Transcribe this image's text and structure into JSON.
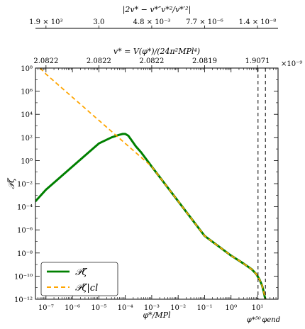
{
  "chart_data": {
    "type": "line",
    "x_scale": "log",
    "y_scale": "log",
    "xlim": [
      4e-08,
      60
    ],
    "ylim": [
      1e-12,
      100000000.0
    ],
    "xlabel": "φ*/MPl",
    "ylabel": "𝒫ζ",
    "x_ticks": [
      "10⁻⁷",
      "10⁻⁶",
      "10⁻⁵",
      "10⁻⁴",
      "10⁻³",
      "10⁻²",
      "10⁻¹",
      "10⁰",
      "10¹"
    ],
    "y_ticks": [
      "10⁻¹²",
      "10⁻¹⁰",
      "10⁻⁸",
      "10⁻⁶",
      "10⁻⁴",
      "10⁻²",
      "10⁰",
      "10²",
      "10⁴",
      "10⁶",
      "10⁸"
    ],
    "top_axis_1": {
      "label": "v* = V(φ*)/(24π²MPl⁴)",
      "tick_labels": [
        "2.0822",
        "2.0822",
        "2.0822",
        "2.0819",
        "1.9071"
      ],
      "tick_positions_x": [
        1e-07,
        1e-05,
        0.001,
        0.1,
        10
      ],
      "offset_label": "×10⁻⁹"
    },
    "top_axis_2": {
      "label": "|2v* − v*″v*²/v*′²|",
      "tick_labels": [
        "1.9 × 10³",
        "3.0",
        "4.8 × 10⁻³",
        "7.7 × 10⁻⁶",
        "1.4 × 10⁻⁸"
      ],
      "tick_positions_x": [
        1e-07,
        1e-05,
        0.001,
        0.1,
        10
      ]
    },
    "vlines": [
      {
        "x": 10.5,
        "label": "φ*⁵⁰"
      },
      {
        "x": 20,
        "label": "φend"
      }
    ],
    "legend": {
      "placement": "lower-left"
    },
    "series": [
      {
        "name": "𝒫ζ",
        "color": "#008000",
        "style": "solid",
        "x": [
          4e-08,
          1e-07,
          1e-06,
          1e-05,
          3e-05,
          6e-05,
          8e-05,
          0.0001,
          0.00013,
          0.00018,
          0.00025,
          0.0004,
          0.001,
          0.01,
          0.1,
          1,
          3,
          6,
          9,
          12,
          15,
          17,
          19,
          20
        ],
        "y": [
          0.0003,
          0.003,
          0.3,
          30.0,
          100.0,
          170.0,
          200.0,
          200.0,
          140.0,
          50.0,
          17.0,
          5,
          0.3,
          0.0003,
          3e-07,
          6e-09,
          1.2e-09,
          4e-10,
          1.5e-10,
          5e-11,
          1.5e-11,
          5e-12,
          1.5e-12,
          1e-12
        ]
      },
      {
        "name": "𝒫ζ|cl",
        "color": "#ffa500",
        "style": "dashed",
        "x": [
          6e-08,
          1e-07,
          1e-06,
          1e-05,
          0.0001,
          0.001,
          0.01,
          0.1,
          1,
          3,
          6,
          9,
          12,
          15,
          17,
          19,
          20
        ],
        "y": [
          100000000.0,
          30000000.0,
          300000.0,
          3000.0,
          30.0,
          0.3,
          0.0003,
          3e-07,
          6e-09,
          1.2e-09,
          4e-10,
          1.5e-10,
          5e-11,
          1.5e-11,
          5e-12,
          1.5e-12,
          1e-12
        ]
      }
    ]
  }
}
